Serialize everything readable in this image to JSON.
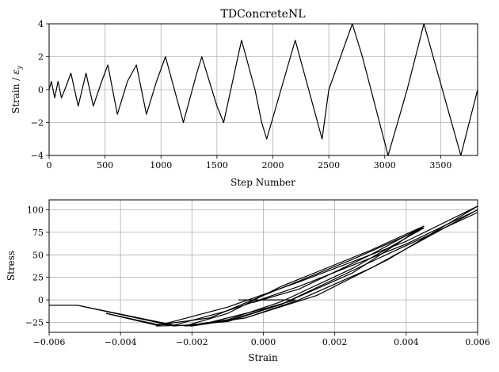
{
  "chart_data": [
    {
      "type": "line",
      "title": "TDConcreteNL",
      "xlabel": "Step Number",
      "ylabel": "Strain / εy",
      "ylabel_main": "Strain / ",
      "ylabel_symbol": "ε",
      "ylabel_sub": "y",
      "xlim": [
        0,
        3830
      ],
      "ylim": [
        -4,
        4
      ],
      "xticks": [
        "0",
        "500",
        "1000",
        "1500",
        "2000",
        "2500",
        "3000",
        "3500"
      ],
      "yticks": [
        "−4",
        "−2",
        "0",
        "2",
        "4"
      ],
      "grid": true,
      "x": [
        0,
        20,
        50,
        80,
        110,
        140,
        195,
        260,
        330,
        395,
        470,
        525,
        610,
        700,
        780,
        870,
        960,
        1040,
        1200,
        1320,
        1365,
        1500,
        1560,
        1720,
        1840,
        1900,
        1945,
        2030,
        2200,
        2440,
        2500,
        2710,
        2800,
        3030,
        3200,
        3350,
        3680,
        3830
      ],
      "y": [
        0,
        0.5,
        -0.5,
        0.5,
        -0.5,
        0,
        1,
        -1,
        1,
        -1,
        0.5,
        1.5,
        -1.5,
        0.5,
        1.5,
        -1.5,
        0.5,
        2,
        -2,
        1,
        2,
        -1,
        -2,
        3,
        0,
        -2,
        -3,
        -1,
        3,
        -3,
        0,
        4,
        2,
        -4,
        0,
        4,
        -4,
        0
      ]
    },
    {
      "type": "line",
      "title": "",
      "xlabel": "Strain",
      "ylabel": "Stress",
      "xlim": [
        -0.006,
        0.006
      ],
      "ylim": [
        -36,
        111
      ],
      "xticks": [
        "−0.006",
        "−0.004",
        "−0.002",
        "0.000",
        "0.002",
        "0.004",
        "0.006"
      ],
      "yticks": [
        "−25",
        "0",
        "25",
        "50",
        "75",
        "100"
      ],
      "grid": true,
      "series": [
        {
          "x": [
            -0.0007,
            0.0009
          ],
          "y": [
            0,
            0
          ]
        },
        {
          "x": [
            0.0009,
            0.0,
            -0.0015,
            -0.0022,
            -0.001,
            0.0005,
            0.0025,
            0.0045
          ],
          "y": [
            0,
            -10,
            -25,
            -29,
            -23,
            -5,
            30,
            82
          ]
        },
        {
          "x": [
            0.0045,
            0.003,
            0.0005,
            -0.001,
            -0.0022
          ],
          "y": [
            82,
            55,
            15,
            -15,
            -29
          ]
        },
        {
          "x": [
            -0.0022,
            -0.001,
            0.0005,
            0.0025,
            0.0045
          ],
          "y": [
            -29,
            -22,
            -2,
            35,
            80
          ]
        },
        {
          "x": [
            0.0045,
            0.0025,
            0.0,
            -0.0015,
            -0.003,
            -0.0044
          ],
          "y": [
            80,
            45,
            5,
            -20,
            -28,
            -15
          ]
        },
        {
          "x": [
            -0.0044,
            -0.003,
            -0.002,
            -0.0005,
            0.0015,
            0.0035,
            0.006
          ],
          "y": [
            -15,
            -27,
            -29,
            -20,
            5,
            45,
            104
          ]
        },
        {
          "x": [
            0.006,
            0.004,
            0.001,
            -0.001,
            -0.003
          ],
          "y": [
            104,
            65,
            20,
            -8,
            -29
          ]
        },
        {
          "x": [
            -0.003,
            -0.002,
            -0.0005,
            0.001,
            0.003,
            0.006
          ],
          "y": [
            -29,
            -28,
            -20,
            0,
            35,
            100
          ]
        },
        {
          "x": [
            0.006,
            0.004,
            0.001,
            -0.001,
            -0.0025,
            -0.0052,
            -0.006
          ],
          "y": [
            100,
            62,
            15,
            -12,
            -28,
            -6,
            -6
          ]
        },
        {
          "x": [
            -0.006,
            -0.0052,
            -0.0025,
            -0.001,
            0.0005,
            0.003,
            0.006
          ],
          "y": [
            -6,
            -6,
            -29,
            -24,
            -5,
            42,
            97
          ]
        },
        {
          "x": [
            -0.0003,
            0.001,
            0.003,
            0.0045
          ],
          "y": [
            -3,
            12,
            50,
            82
          ]
        }
      ]
    }
  ]
}
